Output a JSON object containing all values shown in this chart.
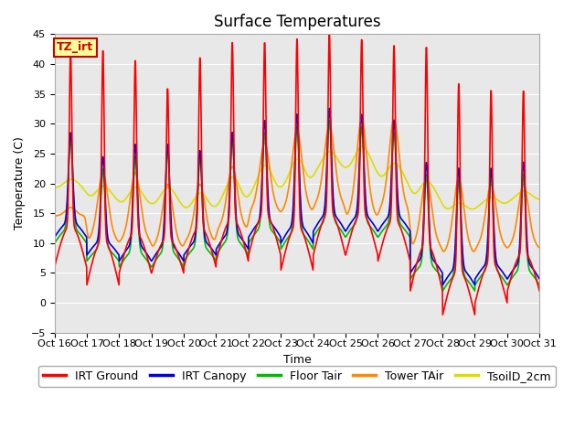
{
  "title": "Surface Temperatures",
  "xlabel": "Time",
  "ylabel": "Temperature (C)",
  "ylim": [
    -5,
    45
  ],
  "xlim": [
    0,
    15
  ],
  "background_color": "#e8e8e8",
  "figure_background": "#ffffff",
  "grid_color": "#ffffff",
  "tick_labels": [
    "Oct 16",
    "Oct 17",
    "Oct 18",
    "Oct 19",
    "Oct 20",
    "Oct 21",
    "Oct 22",
    "Oct 23",
    "Oct 24",
    "Oct 25",
    "Oct 26",
    "Oct 27",
    "Oct 28",
    "Oct 29",
    "Oct 30",
    "Oct 31"
  ],
  "legend": [
    {
      "label": "IRT Ground",
      "color": "#ff0000",
      "style": "-"
    },
    {
      "label": "IRT Canopy",
      "color": "#0000dd",
      "style": "-"
    },
    {
      "label": "Floor Tair",
      "color": "#00bb00",
      "style": "-"
    },
    {
      "label": "Tower TAir",
      "color": "#ff8800",
      "style": "-"
    },
    {
      "label": "TsoilD_2cm",
      "color": "#dddd00",
      "style": "-"
    }
  ],
  "annotation_text": "TZ_irt",
  "annotation_bg": "#ffff99",
  "annotation_edge": "#cc0000",
  "annotation_text_color": "#cc0000",
  "linewidth": 1.2,
  "title_fontsize": 12,
  "label_fontsize": 9,
  "tick_fontsize": 8,
  "legend_fontsize": 9,
  "daily_data": [
    {
      "ground_peak": 40.5,
      "ground_night": 6.0,
      "canopy_peak": 28,
      "canopy_night": 11,
      "floor_peak": 27,
      "floor_night": 10,
      "tower_peak": 16,
      "tower_night": 14.5,
      "soil_peak": 21,
      "soil_night": 19
    },
    {
      "ground_peak": 40.5,
      "ground_night": 3.0,
      "canopy_peak": 24,
      "canopy_night": 8,
      "floor_peak": 22,
      "floor_night": 7,
      "tower_peak": 22,
      "tower_night": 10,
      "soil_peak": 20,
      "soil_night": 17
    },
    {
      "ground_peak": 39.0,
      "ground_night": 5.0,
      "canopy_peak": 26,
      "canopy_night": 7,
      "floor_peak": 24,
      "floor_night": 6,
      "tower_peak": 22,
      "tower_night": 10,
      "soil_peak": 20,
      "soil_night": 16
    },
    {
      "ground_peak": 34.5,
      "ground_night": 5.0,
      "canopy_peak": 26,
      "canopy_night": 7,
      "floor_peak": 25,
      "floor_night": 6,
      "tower_peak": 20,
      "tower_night": 9,
      "soil_peak": 20,
      "soil_night": 16
    },
    {
      "ground_peak": 39.5,
      "ground_night": 6.0,
      "canopy_peak": 25,
      "canopy_night": 8,
      "floor_peak": 24,
      "floor_night": 7,
      "tower_peak": 20,
      "tower_night": 10,
      "soil_peak": 19,
      "soil_night": 15
    },
    {
      "ground_peak": 42.0,
      "ground_night": 7.0,
      "canopy_peak": 28,
      "canopy_night": 9,
      "floor_peak": 27,
      "floor_night": 8,
      "tower_peak": 23,
      "tower_night": 12,
      "soil_peak": 22,
      "soil_night": 16
    },
    {
      "ground_peak": 42.0,
      "ground_night": 8.0,
      "canopy_peak": 30,
      "canopy_night": 11,
      "floor_peak": 28,
      "floor_night": 10,
      "tower_peak": 27,
      "tower_night": 15,
      "soil_peak": 24,
      "soil_night": 18
    },
    {
      "ground_peak": 42.5,
      "ground_night": 5.5,
      "canopy_peak": 31,
      "canopy_night": 10,
      "floor_peak": 29,
      "floor_night": 9,
      "tower_peak": 29,
      "tower_night": 15,
      "soil_peak": 25,
      "soil_night": 19
    },
    {
      "ground_peak": 43.5,
      "ground_night": 8.0,
      "canopy_peak": 32,
      "canopy_night": 12,
      "floor_peak": 30,
      "floor_night": 11,
      "tower_peak": 30,
      "tower_night": 16,
      "soil_peak": 26,
      "soil_night": 22
    },
    {
      "ground_peak": 42.5,
      "ground_night": 8.0,
      "canopy_peak": 31,
      "canopy_night": 12,
      "floor_peak": 29,
      "floor_night": 11,
      "tower_peak": 31,
      "tower_night": 14,
      "soil_peak": 27,
      "soil_night": 22
    },
    {
      "ground_peak": 41.5,
      "ground_night": 7.0,
      "canopy_peak": 30,
      "canopy_night": 12,
      "floor_peak": 28,
      "floor_night": 11,
      "tower_peak": 31,
      "tower_night": 15,
      "soil_peak": 24,
      "soil_night": 20
    },
    {
      "ground_peak": 41.0,
      "ground_night": 2.0,
      "canopy_peak": 23,
      "canopy_night": 5,
      "floor_peak": 21,
      "floor_night": 4,
      "tower_peak": 21,
      "tower_night": 9,
      "soil_peak": 21,
      "soil_night": 17
    },
    {
      "ground_peak": 35.0,
      "ground_night": -2.0,
      "canopy_peak": 22,
      "canopy_night": 3,
      "floor_peak": 20,
      "floor_night": 2,
      "tower_peak": 21,
      "tower_night": 8,
      "soil_peak": 17,
      "soil_night": 15
    },
    {
      "ground_peak": 34.0,
      "ground_night": 0.0,
      "canopy_peak": 22,
      "canopy_night": 4,
      "floor_peak": 21,
      "floor_night": 3,
      "tower_peak": 20,
      "tower_night": 9,
      "soil_peak": 18,
      "soil_night": 16
    },
    {
      "ground_peak": 34.0,
      "ground_night": 2.0,
      "canopy_peak": 23,
      "canopy_night": 4,
      "floor_peak": 21,
      "floor_night": 3,
      "tower_peak": 20,
      "tower_night": 9,
      "soil_peak": 19,
      "soil_night": 17
    }
  ]
}
